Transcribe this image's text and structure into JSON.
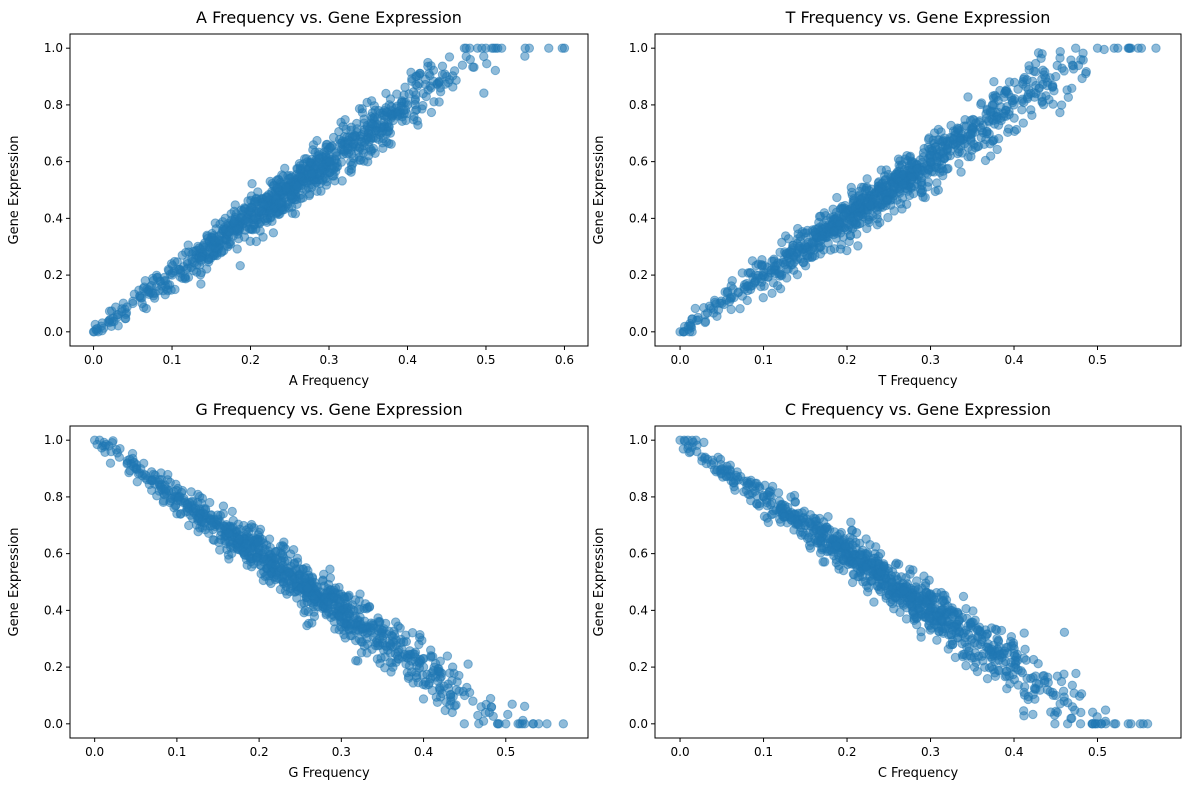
{
  "chart_data": [
    {
      "type": "scatter",
      "title": "A Frequency vs. Gene Expression",
      "xlabel": "A Frequency",
      "ylabel": "Gene Expression",
      "xlim": [
        -0.03,
        0.63
      ],
      "ylim": [
        -0.05,
        1.05
      ],
      "xticks": [
        "0.0",
        "0.1",
        "0.2",
        "0.3",
        "0.4",
        "0.5",
        "0.6"
      ],
      "yticks": [
        "0.0",
        "0.2",
        "0.4",
        "0.6",
        "0.8",
        "1.0"
      ],
      "trend": "positive",
      "x": [
        0.0,
        0.01,
        0.02,
        0.03,
        0.04,
        0.05,
        0.06,
        0.07,
        0.08,
        0.09,
        0.1,
        0.11,
        0.12,
        0.13,
        0.14,
        0.15,
        0.16,
        0.17,
        0.18,
        0.19,
        0.2,
        0.21,
        0.22,
        0.23,
        0.24,
        0.25,
        0.26,
        0.27,
        0.28,
        0.29,
        0.3,
        0.31,
        0.32,
        0.33,
        0.34,
        0.35,
        0.36,
        0.37,
        0.38,
        0.39,
        0.4,
        0.41,
        0.42,
        0.43,
        0.44,
        0.45,
        0.46,
        0.47,
        0.48,
        0.5,
        0.52,
        0.55,
        0.58,
        0.6
      ],
      "y": [
        0.0,
        0.02,
        0.04,
        0.06,
        0.08,
        0.1,
        0.12,
        0.14,
        0.16,
        0.18,
        0.2,
        0.22,
        0.24,
        0.26,
        0.28,
        0.3,
        0.32,
        0.34,
        0.36,
        0.38,
        0.4,
        0.42,
        0.44,
        0.46,
        0.48,
        0.5,
        0.52,
        0.54,
        0.56,
        0.58,
        0.6,
        0.62,
        0.64,
        0.66,
        0.68,
        0.7,
        0.72,
        0.74,
        0.76,
        0.78,
        0.8,
        0.82,
        0.84,
        0.86,
        0.88,
        0.9,
        0.92,
        0.94,
        0.96,
        1.0,
        1.0,
        1.0,
        1.0,
        1.0
      ]
    },
    {
      "type": "scatter",
      "title": "T Frequency vs. Gene Expression",
      "xlabel": "T Frequency",
      "ylabel": "Gene Expression",
      "xlim": [
        -0.03,
        0.6
      ],
      "ylim": [
        -0.05,
        1.05
      ],
      "xticks": [
        "0.0",
        "0.1",
        "0.2",
        "0.3",
        "0.4",
        "0.5"
      ],
      "yticks": [
        "0.0",
        "0.2",
        "0.4",
        "0.6",
        "0.8",
        "1.0"
      ],
      "trend": "positive",
      "x": [
        0.0,
        0.01,
        0.02,
        0.03,
        0.04,
        0.05,
        0.06,
        0.07,
        0.08,
        0.09,
        0.1,
        0.11,
        0.12,
        0.13,
        0.14,
        0.15,
        0.16,
        0.17,
        0.18,
        0.19,
        0.2,
        0.21,
        0.22,
        0.23,
        0.24,
        0.25,
        0.26,
        0.27,
        0.28,
        0.29,
        0.3,
        0.31,
        0.32,
        0.33,
        0.34,
        0.35,
        0.36,
        0.37,
        0.38,
        0.39,
        0.4,
        0.41,
        0.42,
        0.43,
        0.44,
        0.45,
        0.46,
        0.47,
        0.48,
        0.5,
        0.52,
        0.54,
        0.57
      ],
      "y": [
        0.0,
        0.02,
        0.04,
        0.06,
        0.08,
        0.1,
        0.12,
        0.14,
        0.16,
        0.18,
        0.2,
        0.22,
        0.24,
        0.26,
        0.28,
        0.3,
        0.32,
        0.34,
        0.36,
        0.38,
        0.4,
        0.42,
        0.44,
        0.46,
        0.48,
        0.5,
        0.52,
        0.54,
        0.56,
        0.58,
        0.6,
        0.62,
        0.64,
        0.66,
        0.68,
        0.7,
        0.72,
        0.74,
        0.76,
        0.78,
        0.8,
        0.82,
        0.84,
        0.86,
        0.88,
        0.9,
        0.92,
        0.94,
        0.96,
        1.0,
        1.0,
        1.0,
        1.0
      ]
    },
    {
      "type": "scatter",
      "title": "G Frequency vs. Gene Expression",
      "xlabel": "G Frequency",
      "ylabel": "Gene Expression",
      "xlim": [
        -0.03,
        0.6
      ],
      "ylim": [
        -0.05,
        1.05
      ],
      "xticks": [
        "0.0",
        "0.1",
        "0.2",
        "0.3",
        "0.4",
        "0.5"
      ],
      "yticks": [
        "0.0",
        "0.2",
        "0.4",
        "0.6",
        "0.8",
        "1.0"
      ],
      "trend": "negative",
      "x": [
        0.0,
        0.01,
        0.02,
        0.03,
        0.04,
        0.05,
        0.06,
        0.07,
        0.08,
        0.09,
        0.1,
        0.11,
        0.12,
        0.13,
        0.14,
        0.15,
        0.16,
        0.17,
        0.18,
        0.19,
        0.2,
        0.21,
        0.22,
        0.23,
        0.24,
        0.25,
        0.26,
        0.27,
        0.28,
        0.29,
        0.3,
        0.31,
        0.32,
        0.33,
        0.34,
        0.35,
        0.36,
        0.37,
        0.38,
        0.39,
        0.4,
        0.41,
        0.42,
        0.43,
        0.44,
        0.45,
        0.46,
        0.47,
        0.48,
        0.5,
        0.52,
        0.54,
        0.57
      ],
      "y": [
        1.0,
        0.98,
        0.96,
        0.94,
        0.92,
        0.9,
        0.88,
        0.86,
        0.84,
        0.82,
        0.8,
        0.78,
        0.76,
        0.74,
        0.72,
        0.7,
        0.68,
        0.66,
        0.64,
        0.62,
        0.6,
        0.58,
        0.56,
        0.54,
        0.52,
        0.5,
        0.48,
        0.46,
        0.44,
        0.42,
        0.4,
        0.38,
        0.36,
        0.34,
        0.32,
        0.3,
        0.28,
        0.26,
        0.24,
        0.22,
        0.2,
        0.18,
        0.16,
        0.14,
        0.12,
        0.1,
        0.08,
        0.06,
        0.04,
        0.0,
        0.0,
        0.0,
        0.0
      ]
    },
    {
      "type": "scatter",
      "title": "C Frequency vs. Gene Expression",
      "xlabel": "C Frequency",
      "ylabel": "Gene Expression",
      "xlim": [
        -0.03,
        0.6
      ],
      "ylim": [
        -0.05,
        1.05
      ],
      "xticks": [
        "0.0",
        "0.1",
        "0.2",
        "0.3",
        "0.4",
        "0.5"
      ],
      "yticks": [
        "0.0",
        "0.2",
        "0.4",
        "0.6",
        "0.8",
        "1.0"
      ],
      "trend": "negative",
      "x": [
        0.0,
        0.01,
        0.02,
        0.03,
        0.04,
        0.05,
        0.06,
        0.07,
        0.08,
        0.09,
        0.1,
        0.11,
        0.12,
        0.13,
        0.14,
        0.15,
        0.16,
        0.17,
        0.18,
        0.19,
        0.2,
        0.21,
        0.22,
        0.23,
        0.24,
        0.25,
        0.26,
        0.27,
        0.28,
        0.29,
        0.3,
        0.31,
        0.32,
        0.33,
        0.34,
        0.35,
        0.36,
        0.37,
        0.38,
        0.39,
        0.4,
        0.41,
        0.42,
        0.43,
        0.44,
        0.45,
        0.46,
        0.47,
        0.48,
        0.5,
        0.52,
        0.54,
        0.56
      ],
      "y": [
        1.0,
        0.98,
        0.96,
        0.94,
        0.92,
        0.9,
        0.88,
        0.86,
        0.84,
        0.82,
        0.8,
        0.78,
        0.76,
        0.74,
        0.72,
        0.7,
        0.68,
        0.66,
        0.64,
        0.62,
        0.6,
        0.58,
        0.56,
        0.54,
        0.52,
        0.5,
        0.48,
        0.46,
        0.44,
        0.42,
        0.4,
        0.38,
        0.36,
        0.34,
        0.32,
        0.3,
        0.28,
        0.26,
        0.24,
        0.22,
        0.2,
        0.18,
        0.16,
        0.14,
        0.12,
        0.1,
        0.08,
        0.06,
        0.04,
        0.0,
        0.0,
        0.0,
        0.0
      ]
    }
  ],
  "colors": {
    "marker": "#1f77b4"
  }
}
